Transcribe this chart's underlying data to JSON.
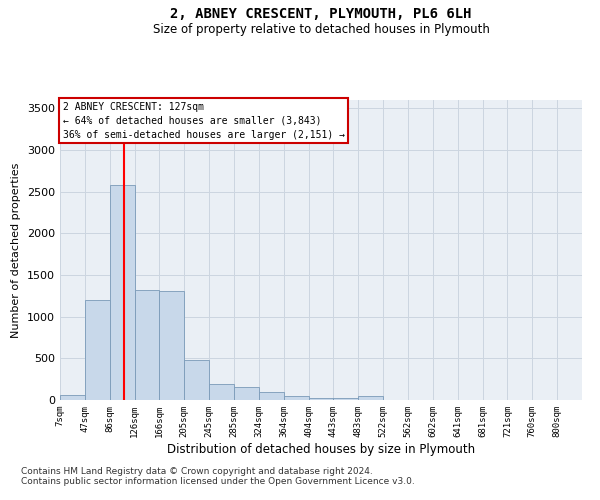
{
  "title": "2, ABNEY CRESCENT, PLYMOUTH, PL6 6LH",
  "subtitle": "Size of property relative to detached houses in Plymouth",
  "xlabel": "Distribution of detached houses by size in Plymouth",
  "ylabel": "Number of detached properties",
  "ylim": [
    0,
    3600
  ],
  "yticks": [
    0,
    500,
    1000,
    1500,
    2000,
    2500,
    3000,
    3500
  ],
  "bin_labels": [
    "7sqm",
    "47sqm",
    "86sqm",
    "126sqm",
    "166sqm",
    "205sqm",
    "245sqm",
    "285sqm",
    "324sqm",
    "364sqm",
    "404sqm",
    "443sqm",
    "483sqm",
    "522sqm",
    "562sqm",
    "602sqm",
    "641sqm",
    "681sqm",
    "721sqm",
    "760sqm",
    "800sqm"
  ],
  "bar_values": [
    55,
    1200,
    2580,
    1320,
    1310,
    480,
    190,
    155,
    100,
    50,
    30,
    30,
    50,
    5,
    5,
    3,
    2,
    1,
    1,
    1,
    0
  ],
  "bar_color": "#c8d8ea",
  "bar_edge_color": "#7a9ab8",
  "grid_color": "#ccd5e0",
  "bg_color": "#eaeff5",
  "property_line_x": 2.575,
  "annotation_text": "2 ABNEY CRESCENT: 127sqm\n← 64% of detached houses are smaller (3,843)\n36% of semi-detached houses are larger (2,151) →",
  "annotation_box_color": "#cc0000",
  "footer_line1": "Contains HM Land Registry data © Crown copyright and database right 2024.",
  "footer_line2": "Contains public sector information licensed under the Open Government Licence v3.0."
}
